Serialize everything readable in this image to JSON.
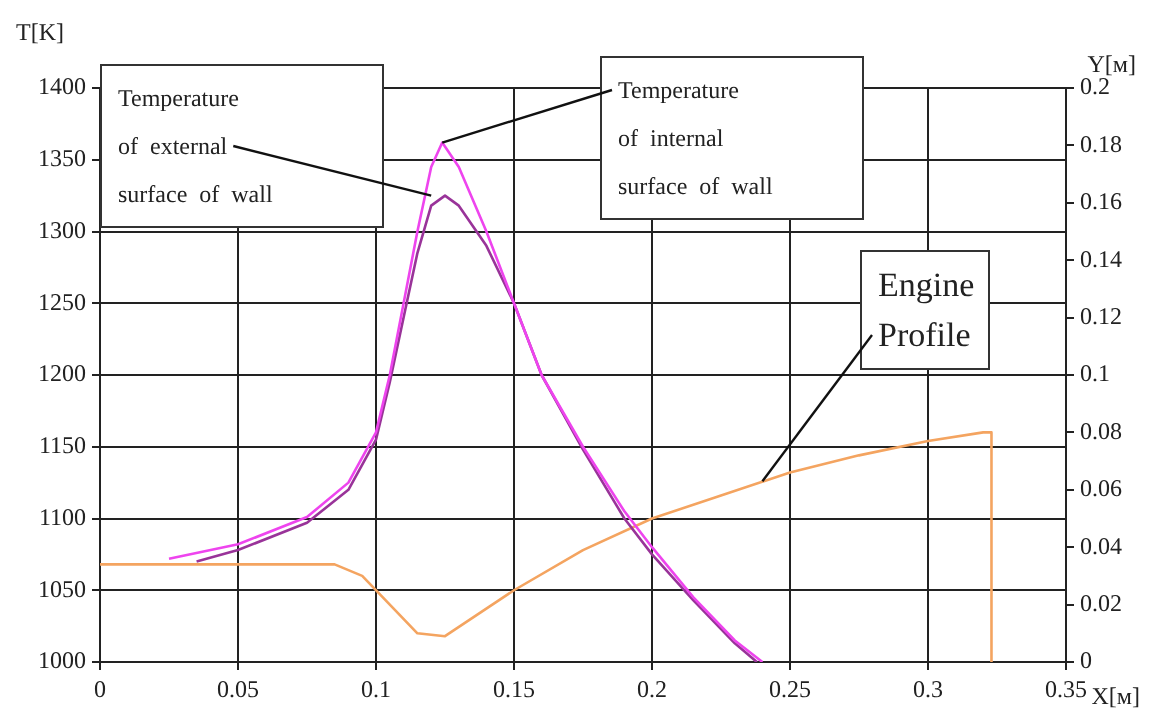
{
  "chart_data": {
    "type": "line",
    "xlabel": "X[м]",
    "ylabel": "T[K]",
    "y2label": "Y[м]",
    "xlim": [
      0,
      0.35
    ],
    "xticks": [
      0,
      0.05,
      0.1,
      0.15,
      0.2,
      0.25,
      0.3,
      0.35
    ],
    "ylim": [
      1000,
      1400
    ],
    "yticks": [
      1000,
      1050,
      1100,
      1150,
      1200,
      1250,
      1300,
      1350,
      1400
    ],
    "y2lim": [
      0,
      0.2
    ],
    "y2ticks": [
      0,
      0.02,
      0.04,
      0.06,
      0.08,
      0.1,
      0.12,
      0.14,
      0.16,
      0.18,
      0.2
    ],
    "grid": true,
    "legend": false,
    "marker": "none",
    "line_style": "solid",
    "series": [
      {
        "color": "#ee44ee",
        "x": [
          0.025,
          0.05,
          0.075,
          0.09,
          0.1,
          0.105,
          0.11,
          0.115,
          0.12,
          0.124,
          0.13,
          0.14,
          0.15,
          0.16,
          0.175,
          0.19,
          0.2,
          0.215,
          0.23,
          0.24
        ],
        "values": [
          1072,
          1082,
          1101,
          1125,
          1160,
          1200,
          1250,
          1300,
          1345,
          1362,
          1345,
          1300,
          1250,
          1200,
          1150,
          1105,
          1080,
          1045,
          1015,
          1000
        ]
      },
      {
        "color": "#993399",
        "x": [
          0.035,
          0.05,
          0.075,
          0.09,
          0.1,
          0.105,
          0.11,
          0.115,
          0.12,
          0.125,
          0.13,
          0.14,
          0.15,
          0.16,
          0.175,
          0.19,
          0.2,
          0.215,
          0.23,
          0.238
        ],
        "values": [
          1070,
          1078,
          1097,
          1120,
          1155,
          1195,
          1240,
          1285,
          1318,
          1325,
          1318,
          1290,
          1250,
          1200,
          1148,
          1100,
          1075,
          1043,
          1013,
          1000
        ]
      },
      {
        "color": "#f4a460",
        "axis": "y2",
        "x": [
          0,
          0.085,
          0.095,
          0.105,
          0.115,
          0.125,
          0.15,
          0.175,
          0.2,
          0.225,
          0.25,
          0.275,
          0.3,
          0.32,
          0.323,
          0.323
        ],
        "values": [
          0.034,
          0.034,
          0.03,
          0.02,
          0.01,
          0.009,
          0.025,
          0.039,
          0.05,
          0.058,
          0.066,
          0.072,
          0.077,
          0.08,
          0.08,
          0
        ]
      }
    ],
    "annotations": [
      {
        "text": "Temperature of external surface of wall",
        "x": 0.12,
        "y": 1325
      },
      {
        "text": "Temperature of internal surface of wall",
        "x": 0.124,
        "y": 1362
      },
      {
        "text": "Engine Profile",
        "x": 0.24,
        "y": 1126
      }
    ]
  }
}
